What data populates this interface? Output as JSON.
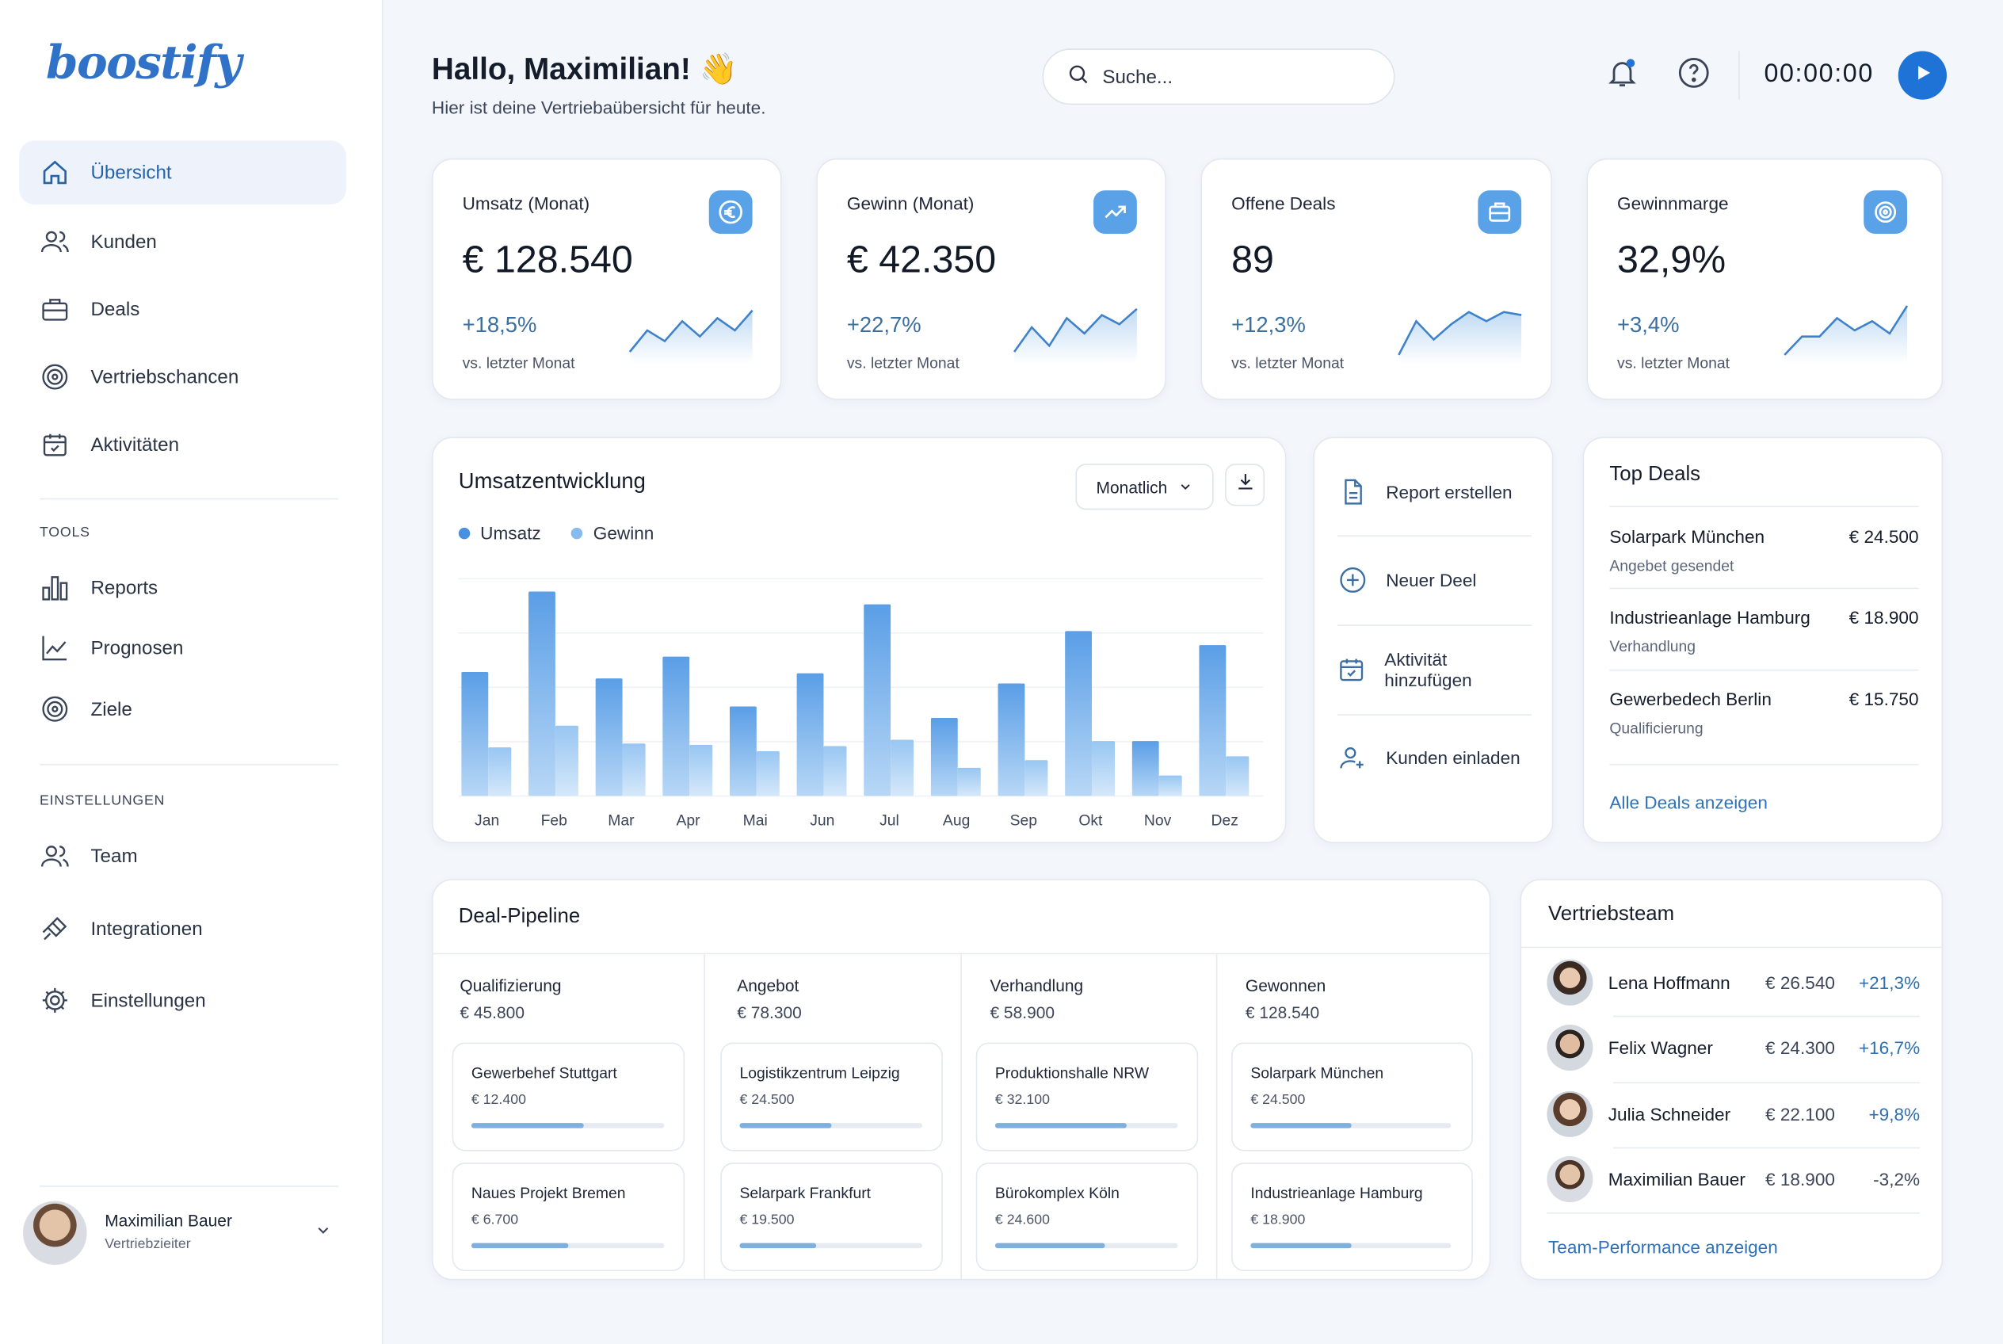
{
  "app": {
    "logo": "boostify"
  },
  "sidebar": {
    "main": [
      {
        "label": "Übersicht",
        "icon": "home-icon",
        "active": true
      },
      {
        "label": "Kunden",
        "icon": "users-icon"
      },
      {
        "label": "Deals",
        "icon": "briefcase-icon"
      },
      {
        "label": "Vertriebschancen",
        "icon": "target-icon"
      },
      {
        "label": "Aktivitäten",
        "icon": "calendar-icon"
      }
    ],
    "tools_heading": "TOOLS",
    "tools": [
      {
        "label": "Reports",
        "icon": "bar-chart-icon"
      },
      {
        "label": "Prognosen",
        "icon": "trend-chart-icon"
      },
      {
        "label": "Ziele",
        "icon": "goal-icon"
      }
    ],
    "settings_heading": "EINSTELLUNGEN",
    "settings": [
      {
        "label": "Team",
        "icon": "team-icon"
      },
      {
        "label": "Integrationen",
        "icon": "plug-icon"
      },
      {
        "label": "Einstellungen",
        "icon": "gear-icon"
      }
    ],
    "user": {
      "name": "Maximilian Bauer",
      "role": "Vertriebzieiter"
    }
  },
  "header": {
    "greeting": "Hallo, Maximilian! 👋",
    "subtitle": "Hier ist deine Vertriebaübersicht für heute.",
    "search_placeholder": "Suche...",
    "timer": "00:00:00"
  },
  "kpis": [
    {
      "label": "Umsatz (Monat)",
      "value": "€ 128.540",
      "change": "+18,5%",
      "compare": "vs. letzter Monat",
      "icon": "euro-icon",
      "spark": [
        8,
        22,
        15,
        28,
        18,
        30,
        22,
        35
      ]
    },
    {
      "label": "Gewinn (Monat)",
      "value": "€ 42.350",
      "change": "+22,7%",
      "compare": "vs. letzter Monat",
      "icon": "trending-up-icon",
      "spark": [
        8,
        24,
        12,
        30,
        20,
        32,
        26,
        36
      ]
    },
    {
      "label": "Offene Deals",
      "value": "89",
      "change": "+12,3%",
      "compare": "vs. letzter Monat",
      "icon": "briefcase-icon",
      "spark": [
        6,
        28,
        16,
        26,
        34,
        28,
        34,
        32
      ]
    },
    {
      "label": "Gewinnmarge",
      "value": "32,9%",
      "change": "+3,4%",
      "compare": "vs. letzter Monat",
      "icon": "target-icon",
      "spark": [
        6,
        18,
        18,
        30,
        22,
        28,
        20,
        38
      ]
    }
  ],
  "revenue": {
    "title": "Umsatzentwicklung",
    "period": "Monatlich",
    "chart_data": {
      "type": "bar",
      "categories": [
        "Jan",
        "Feb",
        "Mar",
        "Apr",
        "Mai",
        "Jun",
        "Jul",
        "Aug",
        "Sep",
        "Okt",
        "Nov",
        "Dez"
      ],
      "series": [
        {
          "name": "Umsatz",
          "values": [
            97,
            160,
            92,
            109,
            70,
            96,
            150,
            61,
            88,
            129,
            43,
            118
          ]
        },
        {
          "name": "Gewinn",
          "values": [
            38,
            55,
            41,
            40,
            35,
            39,
            44,
            22,
            28,
            43,
            16,
            31
          ]
        }
      ],
      "ylim": [
        0,
        170
      ],
      "colors": {
        "Umsatz": "#5a9ee6",
        "Gewinn": "#98c6f2"
      },
      "grid": true,
      "legend": "top-left"
    }
  },
  "quick_actions": [
    {
      "label": "Report erstellen",
      "icon": "document-icon"
    },
    {
      "label": "Neuer Deel",
      "icon": "plus-circle-icon"
    },
    {
      "label": "Aktivität hinzufügen",
      "icon": "calendar-check-icon"
    },
    {
      "label": "Kunden einladen",
      "icon": "user-add-icon"
    }
  ],
  "top_deals": {
    "title": "Top Deals",
    "items": [
      {
        "name": "Solarpark München",
        "value": "€ 24.500",
        "status": "Angebet gesendet"
      },
      {
        "name": "Industrieanlage Hamburg",
        "value": "€ 18.900",
        "status": "Verhandlung"
      },
      {
        "name": "Gewerbedech Berlin",
        "value": "€ 15.750",
        "status": "Qualificierung"
      }
    ],
    "link": "Alle Deals anzeigen"
  },
  "pipeline": {
    "title": "Deal-Pipeline",
    "columns": [
      {
        "name": "Qualifizierung",
        "total": "€ 45.800",
        "cards": [
          {
            "name": "Gewerbehef Stuttgart",
            "value": "€ 12.400",
            "progress": 0.58
          },
          {
            "name": "Naues Projekt Bremen",
            "value": "€ 6.700",
            "progress": 0.5
          }
        ]
      },
      {
        "name": "Angebot",
        "total": "€ 78.300",
        "cards": [
          {
            "name": "Logistikzentrum Leipzig",
            "value": "€ 24.500",
            "progress": 0.5
          },
          {
            "name": "Selarpark Frankfurt",
            "value": "€ 19.500",
            "progress": 0.42
          }
        ]
      },
      {
        "name": "Verhandlung",
        "total": "€ 58.900",
        "cards": [
          {
            "name": "Produktionshalle NRW",
            "value": "€ 32.100",
            "progress": 0.72
          },
          {
            "name": "Bürokomplex Köln",
            "value": "€ 24.600",
            "progress": 0.6
          }
        ]
      },
      {
        "name": "Gewonnen",
        "total": "€ 128.540",
        "cards": [
          {
            "name": "Solarpark München",
            "value": "€ 24.500",
            "progress": 0.5
          },
          {
            "name": "Industrieanlage Hamburg",
            "value": "€ 18.900",
            "progress": 0.5
          }
        ]
      }
    ]
  },
  "team": {
    "title": "Vertriebsteam",
    "members": [
      {
        "name": "Lena Hoffmann",
        "value": "€ 26.540",
        "change": "+21,3%"
      },
      {
        "name": "Felix Wagner",
        "value": "€ 24.300",
        "change": "+16,7%"
      },
      {
        "name": "Julia Schneider",
        "value": "€ 22.100",
        "change": "+9,8%"
      },
      {
        "name": "Maximilian Bauer",
        "value": "€ 18.900",
        "change": "-3,2%"
      }
    ],
    "link": "Team-Performance anzeigen"
  }
}
